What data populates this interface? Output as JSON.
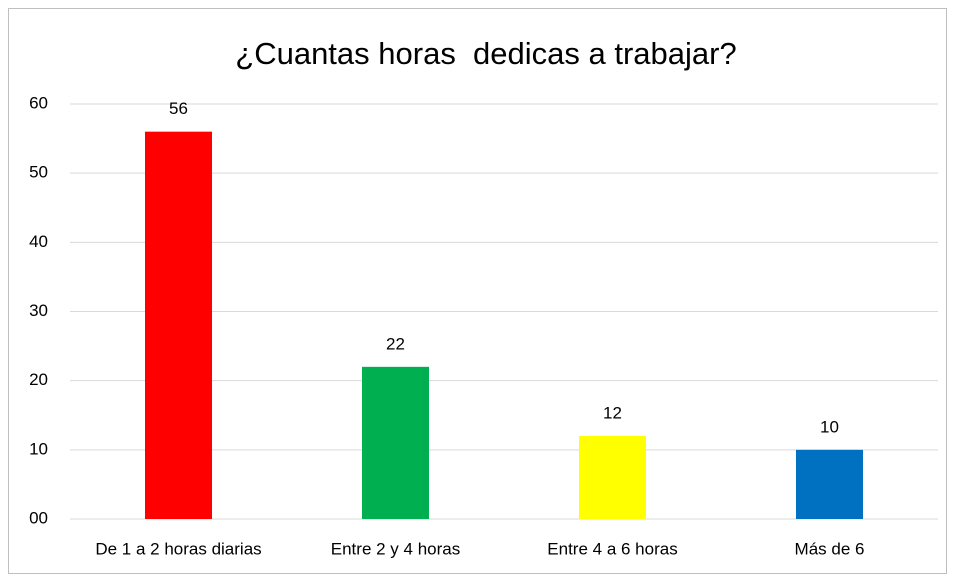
{
  "chart_data": {
    "type": "bar",
    "title": "¿Cuantas horas  dedicas a trabajar?",
    "categories": [
      "De 1 a 2 horas diarias",
      "Entre 2 y 4 horas",
      "Entre 4 a 6 horas",
      "Más de 6"
    ],
    "values": [
      56,
      22,
      12,
      10
    ],
    "colors": [
      "#ff0000",
      "#00b050",
      "#ffff00",
      "#0070c0"
    ],
    "ylim": [
      0,
      60
    ],
    "yticks": [
      {
        "value": 0,
        "label": "00"
      },
      10,
      20,
      30,
      40,
      50,
      60
    ],
    "grid": true
  }
}
